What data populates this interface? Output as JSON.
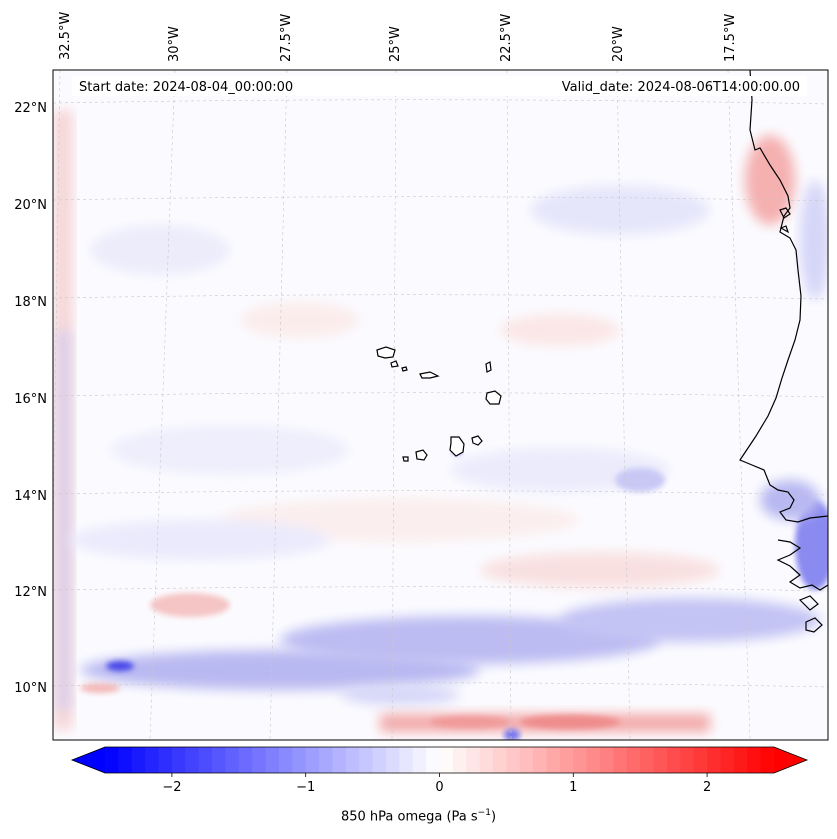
{
  "header": {
    "start_date": "Start date: 2024-08-04_00:00:00",
    "valid_date": "Valid_date: 2024-08-06T14:00:00.00"
  },
  "axes": {
    "lon_labels": [
      "32.5°W",
      "30°W",
      "27.5°W",
      "25°W",
      "22.5°W",
      "20°W",
      "17.5°W"
    ],
    "lat_labels": [
      "22°N",
      "20°N",
      "18°N",
      "16°N",
      "14°N",
      "12°N",
      "10°N"
    ]
  },
  "colorbar": {
    "label_text": "850 hPa omega (Pa s",
    "label_sup": "−1",
    "label_close": ")",
    "range": [
      -2.5,
      2.5
    ],
    "ticks": [
      {
        "value": -2,
        "label": "−2"
      },
      {
        "value": -1,
        "label": "−1"
      },
      {
        "value": 0,
        "label": "0"
      },
      {
        "value": 1,
        "label": "1"
      },
      {
        "value": 2,
        "label": "2"
      }
    ],
    "negative_color": "#0000ff",
    "positive_color": "#ff0000",
    "neutral_color": "#ffffff"
  },
  "map": {
    "gridline_color": "#c8c8c8",
    "coastline_color": "#000000"
  }
}
